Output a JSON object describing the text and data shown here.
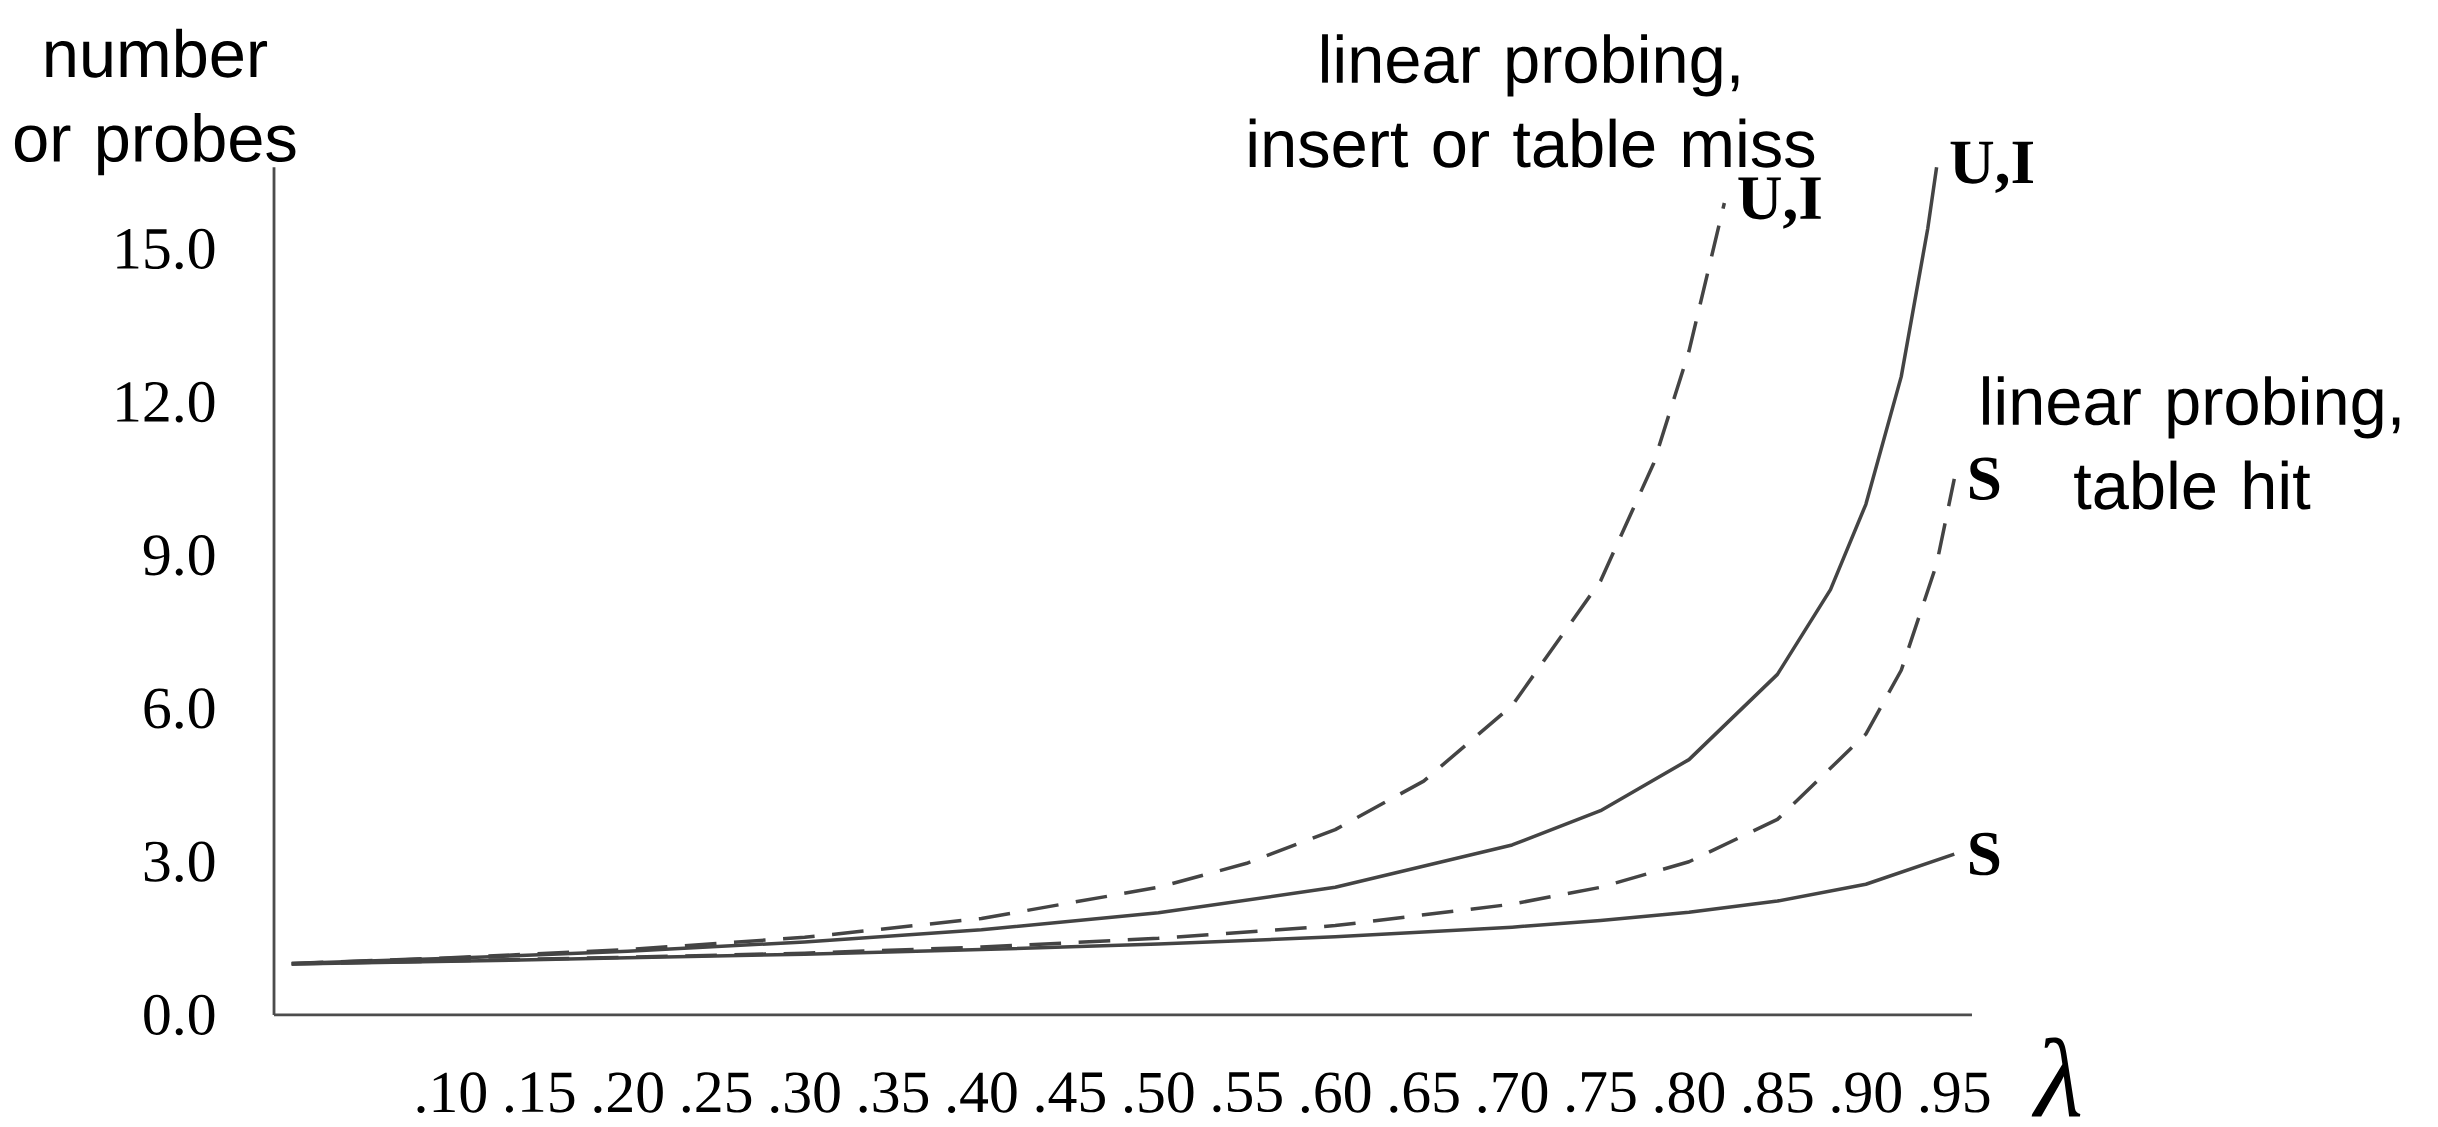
{
  "chart_data": {
    "type": "line",
    "xlabel": "λ",
    "ylabel": "number or probes",
    "xlim": [
      0,
      0.96
    ],
    "ylim": [
      0,
      16.6
    ],
    "xticks": [
      {
        "value": 0.1,
        "label": ".10"
      },
      {
        "value": 0.15,
        "label": ".15"
      },
      {
        "value": 0.2,
        "label": ".20"
      },
      {
        "value": 0.25,
        "label": ".25"
      },
      {
        "value": 0.3,
        "label": ".30"
      },
      {
        "value": 0.35,
        "label": ".35"
      },
      {
        "value": 0.4,
        "label": ".40"
      },
      {
        "value": 0.45,
        "label": ".45"
      },
      {
        "value": 0.5,
        "label": ".50"
      },
      {
        "value": 0.55,
        "label": ".55"
      },
      {
        "value": 0.6,
        "label": ".60"
      },
      {
        "value": 0.65,
        "label": ".65"
      },
      {
        "value": 0.7,
        "label": ".70"
      },
      {
        "value": 0.75,
        "label": ".75"
      },
      {
        "value": 0.8,
        "label": ".80"
      },
      {
        "value": 0.85,
        "label": ".85"
      },
      {
        "value": 0.9,
        "label": ".90"
      },
      {
        "value": 0.95,
        "label": ".95"
      }
    ],
    "yticks": [
      {
        "value": 0,
        "label": "0.0"
      },
      {
        "value": 3,
        "label": "3.0"
      },
      {
        "value": 6,
        "label": "6.0"
      },
      {
        "value": 9,
        "label": "9.0"
      },
      {
        "value": 12,
        "label": "12.0"
      },
      {
        "value": 15,
        "label": "15.0"
      }
    ],
    "annotations": [
      "linear probing, insert or table miss",
      "linear probing, table hit"
    ],
    "series": [
      {
        "name": "U,I",
        "color": "#444444",
        "line_style": "dashed",
        "x": [
          0.01,
          0.1,
          0.2,
          0.3,
          0.4,
          0.5,
          0.55,
          0.6,
          0.65,
          0.7,
          0.75,
          0.78,
          0.8,
          0.82
        ],
        "values": [
          1.01,
          1.12,
          1.28,
          1.52,
          1.89,
          2.5,
          2.97,
          3.63,
          4.58,
          6.06,
          8.5,
          10.8,
          13.0,
          15.9
        ]
      },
      {
        "name": "U,I",
        "color": "#444444",
        "line_style": "solid",
        "x": [
          0.01,
          0.1,
          0.2,
          0.3,
          0.4,
          0.5,
          0.6,
          0.7,
          0.75,
          0.8,
          0.85,
          0.88,
          0.9,
          0.92,
          0.935,
          0.94
        ],
        "values": [
          1.01,
          1.11,
          1.25,
          1.43,
          1.67,
          2.0,
          2.5,
          3.33,
          4.0,
          5.0,
          6.67,
          8.33,
          10.0,
          12.5,
          15.4,
          16.6
        ]
      },
      {
        "name": "S",
        "color": "#444444",
        "line_style": "dashed",
        "x": [
          0.01,
          0.1,
          0.2,
          0.3,
          0.4,
          0.5,
          0.6,
          0.7,
          0.75,
          0.8,
          0.85,
          0.9,
          0.92,
          0.94,
          0.95
        ],
        "values": [
          1.0,
          1.06,
          1.13,
          1.21,
          1.33,
          1.5,
          1.75,
          2.17,
          2.5,
          3.0,
          3.83,
          5.5,
          6.75,
          8.83,
          10.5
        ]
      },
      {
        "name": "S",
        "color": "#444444",
        "line_style": "solid",
        "x": [
          0.01,
          0.1,
          0.2,
          0.3,
          0.4,
          0.5,
          0.6,
          0.7,
          0.75,
          0.8,
          0.85,
          0.9,
          0.95
        ],
        "values": [
          1.0,
          1.05,
          1.12,
          1.19,
          1.28,
          1.39,
          1.53,
          1.72,
          1.85,
          2.01,
          2.23,
          2.56,
          3.15
        ]
      }
    ]
  }
}
